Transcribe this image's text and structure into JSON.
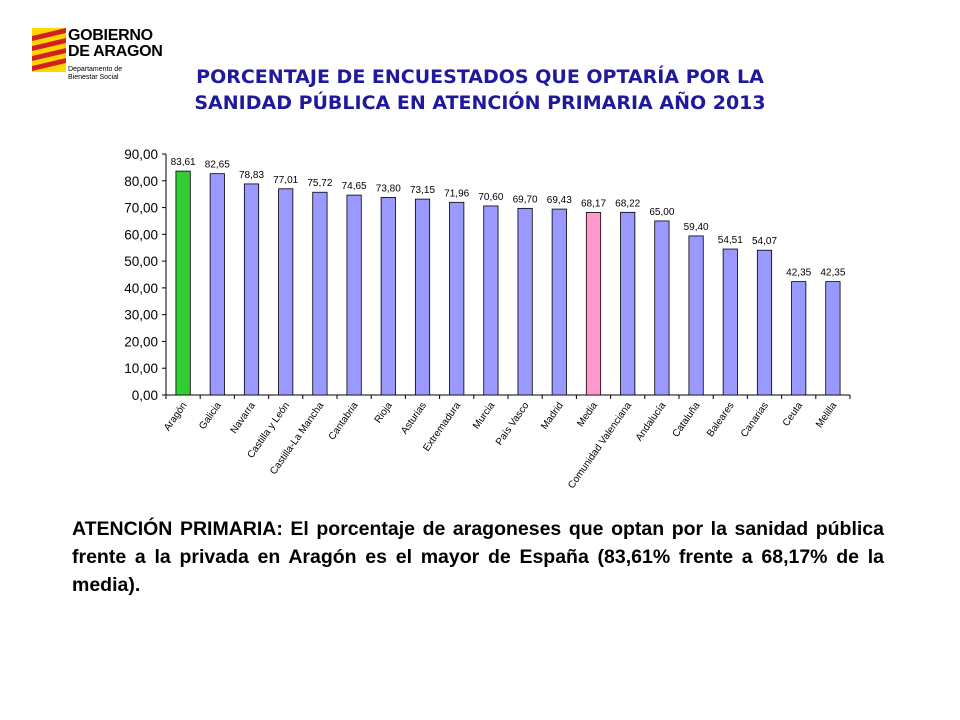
{
  "logo": {
    "name_line1": "GOBIERNO",
    "name_line2": "DE ARAGON",
    "dept_line1": "Departamento de",
    "dept_line2": "Bienestar Social"
  },
  "colors": {
    "default_bar": "#9999ff",
    "highlight_aragon": "#33cc33",
    "highlight_media": "#ff99cc",
    "title": "#1f1a9c"
  },
  "chart_data": {
    "type": "bar",
    "title_line1": "PORCENTAJE DE ENCUESTADOS QUE OPTARÍA POR LA",
    "title_line2": "SANIDAD PÚBLICA EN ATENCIÓN PRIMARIA AÑO 2013",
    "categories": [
      "Aragón",
      "Galicia",
      "Navarra",
      "Castilla y León",
      "Castilla-La Mancha",
      "Cantabria",
      "Rioja",
      "Asturias",
      "Extremadura",
      "Murcia",
      "País Vasco",
      "Madrid",
      "Media",
      "Comunidad Valenciana",
      "Andalucía",
      "Cataluña",
      "Baleares",
      "Canarias",
      "Ceuta",
      "Melilla"
    ],
    "values": [
      83.61,
      82.65,
      78.83,
      77.01,
      75.72,
      74.65,
      73.8,
      73.15,
      71.96,
      70.6,
      69.7,
      69.43,
      68.17,
      68.22,
      65.0,
      59.4,
      54.51,
      54.07,
      42.35,
      42.35
    ],
    "value_labels": [
      "83,61",
      "82,65",
      "78,83",
      "77,01",
      "75,72",
      "74,65",
      "73,80",
      "73,15",
      "71,96",
      "70,60",
      "69,70",
      "69,43",
      "68,17",
      "68,22",
      "65,00",
      "59,40",
      "54,51",
      "54,07",
      "42,35",
      "42,35"
    ],
    "y_ticks": [
      0,
      10,
      20,
      30,
      40,
      50,
      60,
      70,
      80,
      90
    ],
    "y_tick_labels": [
      "0,00",
      "10,00",
      "20,00",
      "30,00",
      "40,00",
      "50,00",
      "60,00",
      "70,00",
      "80,00",
      "90,00"
    ],
    "ylim": [
      0,
      90
    ],
    "grid": false,
    "legend": "none",
    "highlights": {
      "Aragón": "highlight_aragon",
      "Media": "highlight_media"
    }
  },
  "caption": "ATENCIÓN PRIMARIA: El porcentaje de aragoneses que optan por la sanidad pública frente a la privada en Aragón es el mayor de España (83,61% frente a 68,17% de la media)."
}
